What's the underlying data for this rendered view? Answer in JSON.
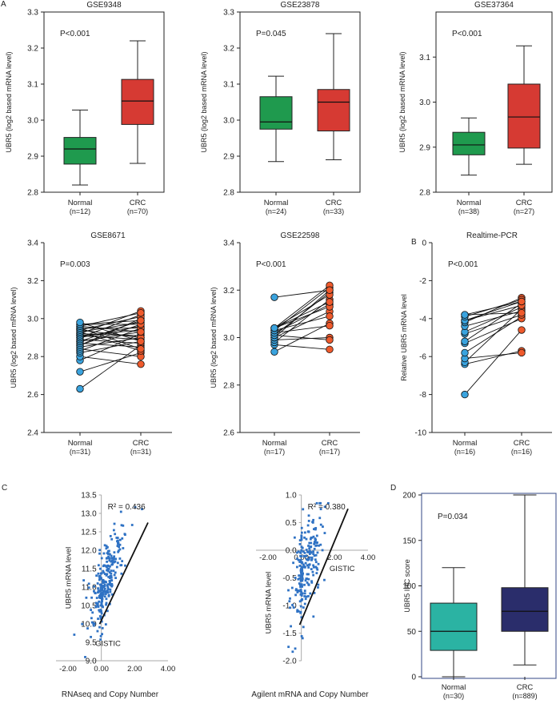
{
  "colors": {
    "normal_box": "#1f9a4e",
    "crc_box": "#d63a33",
    "normal_dot": "#3aa3de",
    "crc_dot": "#ef5a2c",
    "scatter": "#2f72c4",
    "d_normal": "#2bb3a3",
    "d_crc": "#2a2d6b",
    "d_frame": "#556699"
  },
  "chart_data": [
    {
      "id": "p1",
      "type": "box",
      "panel_letter": "A",
      "title": "GSE9348",
      "ylabel": "UBR5 (log2 based mRNA level)",
      "pvalue": "P<0.001",
      "ylim": [
        2.8,
        3.3
      ],
      "yticks": [
        2.8,
        2.9,
        3.0,
        3.1,
        3.2,
        3.3
      ],
      "ytick_labels": [
        "2.8",
        "2.9",
        "3.0",
        "3.1",
        "3.2",
        "3.3"
      ],
      "categories": [
        "Normal",
        "CRC"
      ],
      "counts": [
        "(n=12)",
        "(n=70)"
      ],
      "boxes": [
        {
          "min": 2.82,
          "q1": 2.878,
          "median": 2.92,
          "q3": 2.952,
          "max": 3.028
        },
        {
          "min": 2.88,
          "q1": 2.988,
          "median": 3.053,
          "q3": 3.113,
          "max": 3.22
        }
      ]
    },
    {
      "id": "p2",
      "type": "box",
      "title": "GSE23878",
      "ylabel": "UBR5 (log2 based mRNA level)",
      "pvalue": "P=0.045",
      "ylim": [
        2.8,
        3.3
      ],
      "yticks": [
        2.8,
        2.9,
        3.0,
        3.1,
        3.2,
        3.3
      ],
      "ytick_labels": [
        "2.8",
        "2.9",
        "3.0",
        "3.1",
        "3.2",
        "3.3"
      ],
      "categories": [
        "Normal",
        "CRC"
      ],
      "counts": [
        "(n=24)",
        "(n=33)"
      ],
      "boxes": [
        {
          "min": 2.885,
          "q1": 2.975,
          "median": 2.995,
          "q3": 3.065,
          "max": 3.122
        },
        {
          "min": 2.89,
          "q1": 2.97,
          "median": 3.05,
          "q3": 3.085,
          "max": 3.24
        }
      ]
    },
    {
      "id": "p3",
      "type": "box",
      "title": "GSE37364",
      "ylabel": "UBR5 (log2 based mRNA level)",
      "pvalue": "P<0.001",
      "ylim": [
        2.8,
        3.2
      ],
      "yticks": [
        2.8,
        2.9,
        3.0,
        3.1
      ],
      "ytick_labels": [
        "2.8",
        "2.9",
        "3.0",
        "3.1"
      ],
      "categories": [
        "Normal",
        "CRC"
      ],
      "counts": [
        "(n=38)",
        "(n=27)"
      ],
      "boxes": [
        {
          "min": 2.838,
          "q1": 2.883,
          "median": 2.905,
          "q3": 2.933,
          "max": 2.965
        },
        {
          "min": 2.862,
          "q1": 2.898,
          "median": 2.967,
          "q3": 3.04,
          "max": 3.125
        }
      ]
    },
    {
      "id": "p4",
      "type": "paired",
      "title": "GSE8671",
      "ylabel": "UBR5 (log2 based mRNA level)",
      "pvalue": "P=0.003",
      "ylim": [
        2.4,
        3.4
      ],
      "yticks": [
        2.4,
        2.6,
        2.8,
        3.0,
        3.2,
        3.4
      ],
      "ytick_labels": [
        "2.4",
        "2.6",
        "2.8",
        "3.0",
        "3.2",
        "3.4"
      ],
      "categories": [
        "Normal",
        "CRC"
      ],
      "counts": [
        "(n=31)",
        "(n=31)"
      ],
      "normal": [
        2.63,
        2.72,
        2.78,
        2.8,
        2.82,
        2.83,
        2.84,
        2.85,
        2.86,
        2.86,
        2.87,
        2.88,
        2.88,
        2.89,
        2.9,
        2.9,
        2.91,
        2.91,
        2.92,
        2.92,
        2.93,
        2.93,
        2.94,
        2.94,
        2.95,
        2.95,
        2.96,
        2.96,
        2.97,
        2.97,
        2.98
      ],
      "crc": [
        2.86,
        2.82,
        2.92,
        2.76,
        2.88,
        2.95,
        2.8,
        2.9,
        2.97,
        3.0,
        2.85,
        2.93,
        2.99,
        2.87,
        2.96,
        3.02,
        2.89,
        2.94,
        3.04,
        2.91,
        2.83,
        2.98,
        3.01,
        2.9,
        2.95,
        2.84,
        3.03,
        2.93,
        2.97,
        2.99,
        2.88
      ]
    },
    {
      "id": "p5",
      "type": "paired",
      "title": "GSE22598",
      "ylabel": "UBR5 (log2 based mRNA level)",
      "pvalue": "P<0.001",
      "ylim": [
        2.6,
        3.4
      ],
      "yticks": [
        2.6,
        2.8,
        3.0,
        3.2,
        3.4
      ],
      "ytick_labels": [
        "2.6",
        "2.8",
        "3.0",
        "3.2",
        "3.4"
      ],
      "categories": [
        "Normal",
        "CRC"
      ],
      "counts": [
        "(n=17)",
        "(n=17)"
      ],
      "normal": [
        2.94,
        2.97,
        2.98,
        2.99,
        3.0,
        3.0,
        3.01,
        3.01,
        3.02,
        3.02,
        3.03,
        3.03,
        3.04,
        3.04,
        3.04,
        3.04,
        3.17
      ],
      "crc": [
        3.06,
        2.95,
        3.16,
        3.0,
        3.2,
        3.11,
        2.99,
        3.19,
        3.05,
        3.14,
        3.21,
        3.09,
        3.18,
        3.13,
        3.15,
        3.22,
        3.2
      ]
    },
    {
      "id": "p6",
      "type": "paired",
      "panel_letter": "B",
      "title": "Realtime-PCR",
      "ylabel": "Relative UBR5 mRNA level",
      "pvalue": "P<0.001",
      "ylim": [
        -10,
        0
      ],
      "yticks": [
        -10,
        -8,
        -6,
        -4,
        -2,
        0
      ],
      "ytick_labels": [
        "-10",
        "-8",
        "-6",
        "-4",
        "-2",
        "0"
      ],
      "categories": [
        "Normal",
        "CRC"
      ],
      "counts": [
        "(n=16)",
        "(n=16)"
      ],
      "normal": [
        -8.0,
        -6.4,
        -6.3,
        -6.1,
        -5.8,
        -5.3,
        -5.2,
        -4.8,
        -4.7,
        -4.4,
        -4.2,
        -4.1,
        -4.1,
        -3.9,
        -3.8,
        -3.8
      ],
      "crc": [
        -4.6,
        -5.7,
        -3.5,
        -5.8,
        -3.9,
        -4.0,
        -3.2,
        -3.8,
        -3.4,
        -3.6,
        -2.9,
        -3.3,
        -3.1,
        -3.0,
        -3.7,
        -3.1
      ]
    },
    {
      "id": "p7",
      "type": "scatter",
      "panel_letter": "C",
      "title": "RNAseq and Copy Number",
      "ylabel": "UBR5 mRNA level",
      "xlabel": "GISTIC",
      "r2": "R² = 0.436",
      "xlim": [
        -2,
        4
      ],
      "ylim": [
        9.0,
        13.5
      ],
      "xticks": [
        -2,
        0,
        2,
        4
      ],
      "xtick_labels": [
        "-2.00",
        "0.00",
        "2.00",
        "4.00"
      ],
      "yticks": [
        9.0,
        9.5,
        10.0,
        10.5,
        11.0,
        11.5,
        12.0,
        12.5,
        13.0,
        13.5
      ],
      "ytick_labels": [
        "9.0",
        "9.5",
        "10.0",
        "10.5",
        "11.0",
        "11.5",
        "12.0",
        "12.5",
        "13.0",
        "13.5"
      ],
      "trend": {
        "x0": -0.1,
        "y0": 10.0,
        "x1": 2.8,
        "y1": 12.75
      },
      "points": {
        "n": 260,
        "x_center": 0.3,
        "x_spread": 0.55,
        "slope": 0.95,
        "intercept": 10.9,
        "noise": 0.45,
        "seed": 7
      }
    },
    {
      "id": "p8",
      "type": "scatter",
      "title": "Agilent mRNA and Copy Number",
      "ylabel": "UBR5 mRNA level",
      "xlabel": "GISTIC",
      "r2": "R² = 0.380",
      "xlim": [
        -2,
        4
      ],
      "ylim": [
        -2.0,
        1.0
      ],
      "xticks": [
        -2,
        0,
        2,
        4
      ],
      "xtick_labels": [
        "-2.00",
        "0.00",
        "2.00",
        "4.00"
      ],
      "yticks": [
        -2.0,
        -1.5,
        -1.0,
        -0.5,
        0.0,
        0.5,
        1.0
      ],
      "ytick_labels": [
        "-2.0",
        "-1.5",
        "-1.0",
        "-0.5",
        "0.0",
        "0.5",
        "1.0"
      ],
      "trend": {
        "x0": -0.1,
        "y0": -1.35,
        "x1": 2.8,
        "y1": 0.75
      },
      "points": {
        "n": 230,
        "x_center": 0.35,
        "x_spread": 0.5,
        "slope": 0.7,
        "intercept": -0.5,
        "noise": 0.42,
        "seed": 13
      }
    },
    {
      "id": "p9",
      "type": "box",
      "panel_letter": "D",
      "ylabel": "UBR5 IHC score",
      "pvalue": "P=0.034",
      "ylim": [
        0,
        200
      ],
      "yticks": [
        0,
        50,
        100,
        150,
        200
      ],
      "ytick_labels": [
        "0",
        "50",
        "100",
        "150",
        "200"
      ],
      "categories": [
        "Normal",
        "CRC"
      ],
      "counts": [
        "(n=30)",
        "(n=889)"
      ],
      "boxes": [
        {
          "min": 0,
          "q1": 29,
          "median": 50,
          "q3": 81,
          "max": 120
        },
        {
          "min": 13,
          "q1": 50,
          "median": 72,
          "q3": 98,
          "max": 200
        }
      ]
    }
  ]
}
